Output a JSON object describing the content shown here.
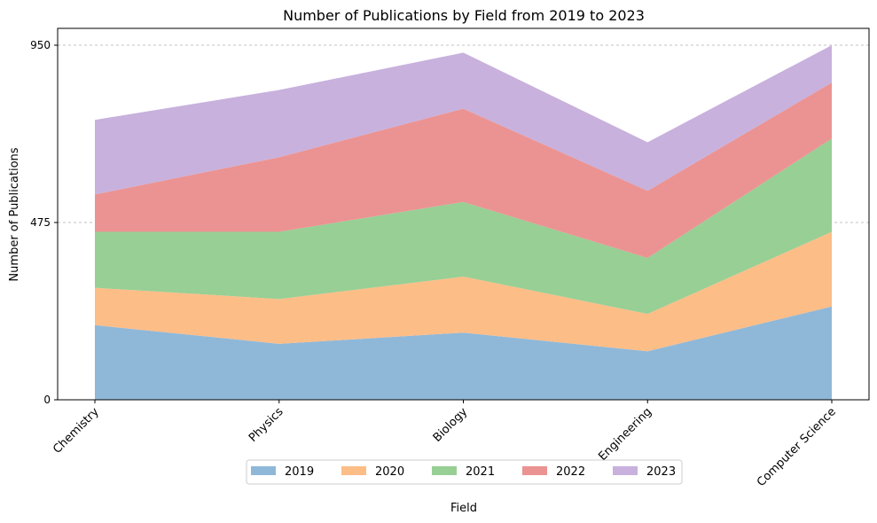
{
  "chart_data": {
    "type": "area",
    "stacked": true,
    "title": "Number of Publications by Field from 2019 to 2023",
    "xlabel": "Field",
    "ylabel": "Number of Publications",
    "categories": [
      "Chemistry",
      "Physics",
      "Biology",
      "Engineering",
      "Computer Science"
    ],
    "yticks": [
      0,
      475,
      950
    ],
    "ylim": [
      0,
      950
    ],
    "grid": "horizontal-dashed",
    "legend": "bottom-center",
    "series": [
      {
        "name": "2019",
        "color": "#8fb8d8",
        "values": [
          200,
          150,
          180,
          130,
          250
        ]
      },
      {
        "name": "2020",
        "color": "#fdbd87",
        "values": [
          100,
          120,
          150,
          100,
          200
        ]
      },
      {
        "name": "2021",
        "color": "#97cf95",
        "values": [
          150,
          180,
          200,
          150,
          250
        ]
      },
      {
        "name": "2022",
        "color": "#eb9392",
        "values": [
          100,
          200,
          250,
          180,
          150
        ]
      },
      {
        "name": "2023",
        "color": "#c8b1dd",
        "values": [
          200,
          180,
          150,
          130,
          100
        ]
      }
    ]
  }
}
